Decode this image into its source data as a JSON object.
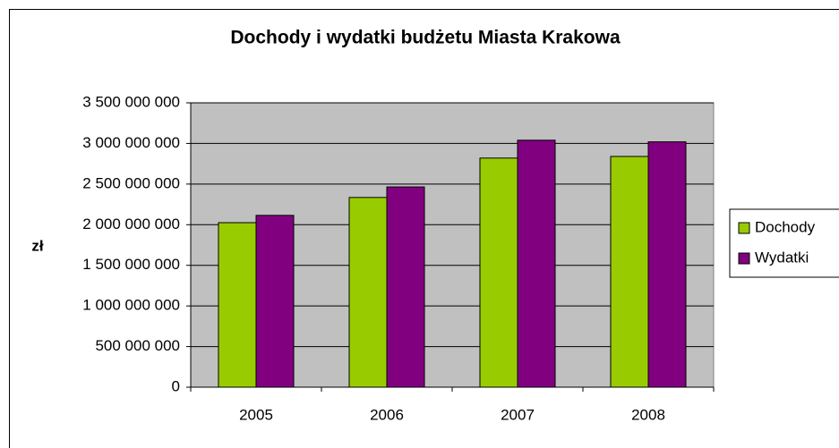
{
  "chart_data": {
    "type": "bar",
    "title": "Dochody i wydatki budżetu Miasta Krakowa",
    "y_label": "zł",
    "categories": [
      "2005",
      "2006",
      "2007",
      "2008"
    ],
    "series": [
      {
        "name": "Dochody",
        "color": "#99cc00",
        "values": [
          2025000000,
          2335000000,
          2820000000,
          2840000000
        ]
      },
      {
        "name": "Wydatki",
        "color": "#800080",
        "values": [
          2115000000,
          2465000000,
          3040000000,
          3020000000
        ]
      }
    ],
    "ylim": [
      0,
      3500000000
    ],
    "yticks": [
      0,
      {
        "value": 500000000,
        "label": "500 000 000"
      },
      {
        "value": 1000000000,
        "label": "1 000 000 000"
      },
      {
        "value": 1500000000,
        "label": "1 500 000 000"
      },
      {
        "value": 2000000000,
        "label": "2 000 000 000"
      },
      {
        "value": 2500000000,
        "label": "2 500 000 000"
      },
      {
        "value": 3000000000,
        "label": "3 000 000 000"
      },
      {
        "value": 3500000000,
        "label": "3 500 000 000"
      }
    ],
    "grid": true,
    "plot_background": "#c0c0c0",
    "legend": "right"
  }
}
